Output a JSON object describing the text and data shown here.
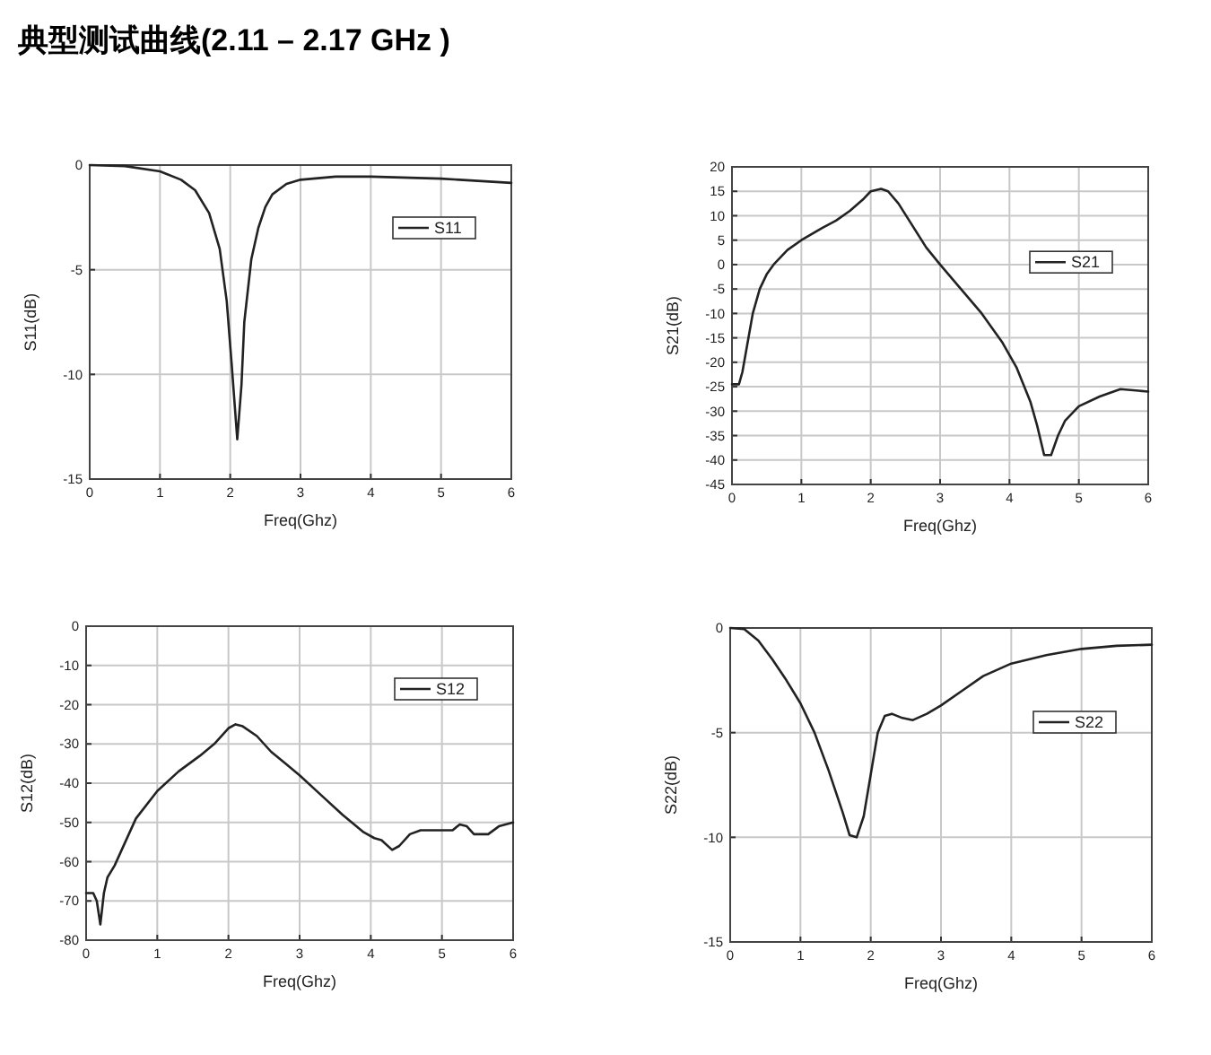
{
  "chart_data": [
    {
      "type": "line",
      "title": "典型测试曲线(2.11 –  2.17 GHz )",
      "xlabel": "Freq(Ghz)",
      "ylabel": "S11(dB)",
      "xlim": [
        0,
        6
      ],
      "ylim": [
        -15,
        0
      ],
      "xticks": [
        0,
        1,
        2,
        3,
        4,
        5,
        6
      ],
      "yticks": [
        -15,
        -10,
        -5,
        0
      ],
      "grid": true,
      "legend": "top right",
      "series": [
        {
          "name": "S11",
          "color": "#222222",
          "x": [
            0,
            0.5,
            1,
            1.3,
            1.5,
            1.7,
            1.85,
            1.95,
            2.02,
            2.1,
            2.16,
            2.2,
            2.3,
            2.4,
            2.5,
            2.6,
            2.8,
            3,
            3.5,
            4,
            5,
            6
          ],
          "values": [
            0,
            -0.05,
            -0.3,
            -0.7,
            -1.2,
            -2.3,
            -4,
            -6.5,
            -9.5,
            -13.1,
            -10.5,
            -7.5,
            -4.5,
            -3,
            -2,
            -1.4,
            -0.9,
            -0.7,
            -0.55,
            -0.55,
            -0.65,
            -0.85
          ]
        }
      ]
    },
    {
      "type": "line",
      "xlabel": "Freq(Ghz)",
      "ylabel": "S21(dB)",
      "xlim": [
        0,
        6
      ],
      "ylim": [
        -45,
        20
      ],
      "xticks": [
        0,
        1,
        2,
        3,
        4,
        5,
        6
      ],
      "yticks": [
        -45,
        -40,
        -35,
        -30,
        -25,
        -20,
        -15,
        -10,
        -5,
        0,
        5,
        10,
        15,
        20
      ],
      "grid": true,
      "legend": "right",
      "series": [
        {
          "name": "S21",
          "color": "#222222",
          "x": [
            0,
            0.1,
            0.15,
            0.2,
            0.3,
            0.4,
            0.5,
            0.6,
            0.8,
            1,
            1.3,
            1.5,
            1.7,
            1.9,
            2,
            2.15,
            2.25,
            2.4,
            2.6,
            2.8,
            3,
            3.3,
            3.6,
            3.9,
            4.1,
            4.3,
            4.4,
            4.5,
            4.6,
            4.7,
            4.8,
            5,
            5.3,
            5.6,
            6
          ],
          "values": [
            -24.5,
            -24.5,
            -22,
            -18,
            -10,
            -5,
            -2,
            0,
            3,
            5,
            7.5,
            9,
            11,
            13.5,
            15,
            15.5,
            15,
            12.5,
            8,
            3.5,
            0,
            -5,
            -10,
            -16,
            -21,
            -28,
            -33,
            -39,
            -39,
            -35,
            -32,
            -29,
            -27,
            -25.5,
            -26
          ]
        }
      ]
    },
    {
      "type": "line",
      "xlabel": "Freq(Ghz)",
      "ylabel": "S12(dB)",
      "xlim": [
        0,
        6
      ],
      "ylim": [
        -80,
        0
      ],
      "xticks": [
        0,
        1,
        2,
        3,
        4,
        5,
        6
      ],
      "yticks": [
        -80,
        -70,
        -60,
        -50,
        -40,
        -30,
        -20,
        -10,
        0
      ],
      "grid": true,
      "legend": "top right",
      "series": [
        {
          "name": "S12",
          "color": "#222222",
          "x": [
            0,
            0.1,
            0.15,
            0.2,
            0.25,
            0.3,
            0.4,
            0.5,
            0.7,
            1,
            1.3,
            1.6,
            1.8,
            2,
            2.1,
            2.2,
            2.4,
            2.6,
            2.8,
            3,
            3.3,
            3.6,
            3.9,
            4.05,
            4.15,
            4.3,
            4.4,
            4.55,
            4.7,
            5,
            5.15,
            5.25,
            5.35,
            5.45,
            5.65,
            5.8,
            6
          ],
          "values": [
            -68,
            -68,
            -70,
            -76,
            -68,
            -64,
            -61,
            -57,
            -49,
            -42,
            -37,
            -33,
            -30,
            -26,
            -25,
            -25.5,
            -28,
            -32,
            -35,
            -38,
            -43,
            -48,
            -52.5,
            -54,
            -54.5,
            -57,
            -56,
            -53,
            -52,
            -52,
            -52,
            -50.5,
            -51,
            -53,
            -53,
            -51,
            -50
          ]
        }
      ]
    },
    {
      "type": "line",
      "xlabel": "Freq(Ghz)",
      "ylabel": "S22(dB)",
      "xlim": [
        0,
        6
      ],
      "ylim": [
        -15,
        0
      ],
      "xticks": [
        0,
        1,
        2,
        3,
        4,
        5,
        6
      ],
      "yticks": [
        -15,
        -10,
        -5,
        0
      ],
      "grid": true,
      "legend": "right",
      "series": [
        {
          "name": "S22",
          "color": "#222222",
          "x": [
            0,
            0.2,
            0.4,
            0.6,
            0.8,
            1,
            1.2,
            1.4,
            1.6,
            1.7,
            1.8,
            1.9,
            2,
            2.1,
            2.2,
            2.3,
            2.45,
            2.6,
            2.8,
            3,
            3.3,
            3.6,
            4,
            4.5,
            5,
            5.5,
            6
          ],
          "values": [
            0,
            -0.05,
            -0.6,
            -1.5,
            -2.5,
            -3.6,
            -5,
            -6.8,
            -8.8,
            -9.9,
            -10,
            -9,
            -7,
            -5,
            -4.2,
            -4.1,
            -4.3,
            -4.4,
            -4.1,
            -3.7,
            -3,
            -2.3,
            -1.7,
            -1.3,
            -1,
            -0.85,
            -0.8
          ]
        }
      ]
    }
  ]
}
